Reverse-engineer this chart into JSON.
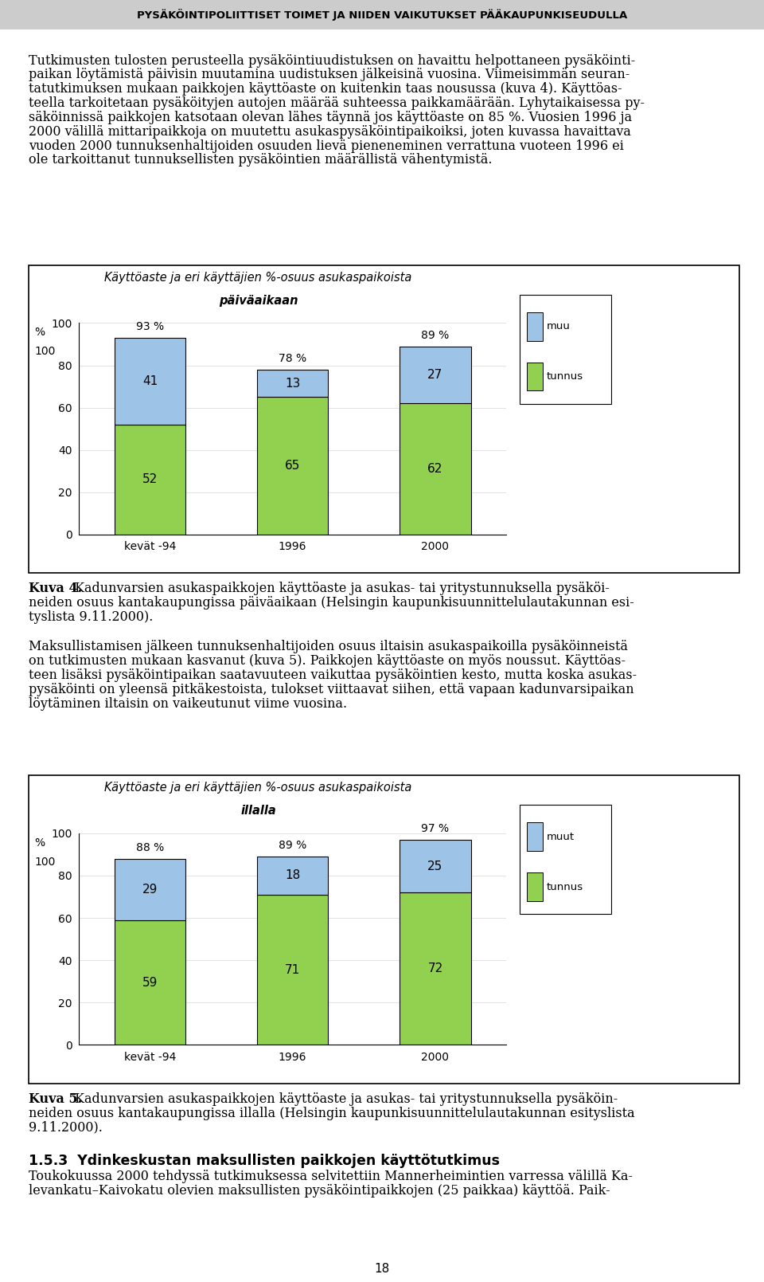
{
  "page_title": "PYSÄKÖINTIPOLIITTISET TOIMET JA NIIDEN VAIKUTUKSET PÄÄKAUPUNKISEUDULLA",
  "intro_text_lines": [
    "Tutkimusten tulosten perusteella pysäköintiuudistuksen on havaittu helpottaneen pysäköinti-",
    "paikan löytämistä päivisin muutamina uudistuksen jälkeisinä vuosina. Viimeisimmän seuran-",
    "tatutkimuksen mukaan paikkojen käyttöaste on kuitenkin taas nousussa (kuva 4). Käyttöas-",
    "teella tarkoitetaan pysäköityjen autojen määrää suhteessa paikkamäärään. Lyhytaikaisessa py-",
    "säköinnissä paikkojen katsotaan olevan lähes täynnä jos käyttöaste on 85 %. Vuosien 1996 ja",
    "2000 välillä mittaripaikkoja on muutettu asukaspysäköintipaikoiksi, joten kuvassa havaittava",
    "vuoden 2000 tunnuksenhaltijoiden osuuden lievä pieneneminen verrattuna vuoteen 1996 ei",
    "ole tarkoittanut tunnuksellisten pysäköintien määrällistä vähentymistä."
  ],
  "chart1": {
    "title_line1": "Käyttöaste ja eri käyttäjien %-osuus asukaspaikoista",
    "title_line2": "päiväaikaan",
    "categories": [
      "kevät -94",
      "1996",
      "2000"
    ],
    "total_pct": [
      "93 %",
      "78 %",
      "89 %"
    ],
    "tunnus_values": [
      52,
      65,
      62
    ],
    "muu_values": [
      41,
      13,
      27
    ],
    "ylabel": "%",
    "ylim": [
      0,
      100
    ],
    "yticks": [
      0,
      20,
      40,
      60,
      80,
      100
    ],
    "legend_muu": "muu",
    "legend_tunnus": "tunnus",
    "color_tunnus": "#92D050",
    "color_muu": "#9DC3E6"
  },
  "caption1_lines": [
    "Kuva 4. Kadunvarsien asukaspaikkojen käyttöaste ja asukas- tai yritystunnuksella pysäköi-",
    "neiden osuus kantakaupungissa päiväaikaan (Helsingin kaupunkisuunnittelulautakunnan esi-",
    "tyslista 9.11.2000)."
  ],
  "middle_text_lines": [
    "Maksullistamisen jälkeen tunnuksenhaltijoiden osuus iltaisin asukaspaikoilla pysäköinneistä",
    "on tutkimusten mukaan kasvanut (kuva 5). Paikkojen käyttöaste on myös noussut. Käyttöas-",
    "teen lisäksi pysäköintipaikan saatavuuteen vaikuttaa pysäköintien kesto, mutta koska asukas-",
    "pysäköinti on yleensä pitkäkestoista, tulokset viittaavat siihen, että vapaan kadunvarsipaikan",
    "löytäminen iltaisin on vaikeutunut viime vuosina."
  ],
  "chart2": {
    "title_line1": "Käyttöaste ja eri käyttäjien %-osuus asukaspaikoista",
    "title_line2": "illalla",
    "categories": [
      "kevät -94",
      "1996",
      "2000"
    ],
    "total_pct": [
      "88 %",
      "89 %",
      "97 %"
    ],
    "tunnus_values": [
      59,
      71,
      72
    ],
    "muu_values": [
      29,
      18,
      25
    ],
    "ylabel": "%",
    "ylim": [
      0,
      100
    ],
    "yticks": [
      0,
      20,
      40,
      60,
      80,
      100
    ],
    "legend_muu": "muut",
    "legend_tunnus": "tunnus",
    "color_tunnus": "#92D050",
    "color_muu": "#9DC3E6"
  },
  "caption2_lines": [
    "Kuva 5. Kadunvarsien asukaspaikkojen käyttöaste ja asukas- tai yritystunnuksella pysäköin-",
    "neiden osuus kantakaupungissa illalla (Helsingin kaupunkisuunnittelulautakunnan esityslista",
    "9.11.2000)."
  ],
  "section_title": "1.5.3  Ydinkeskustan maksullisten paikkojen käyttötutkimus",
  "section_text": "Toukokuussa 2000 tehdyssä tutkimuksessa selvitettiin Mannerheimintien varressa välillä Ka-",
  "section_text2": "levankatu–Kaivokatu olevien maksullisten pysäköintipaikkojen (25 paikkaa) käyttöä. Paik-",
  "page_number": "18",
  "text_fontsize": 11.5,
  "title_fontsize": 9.5,
  "chart_title_fontsize": 10.5,
  "caption_bold_fontsize": 11.5
}
